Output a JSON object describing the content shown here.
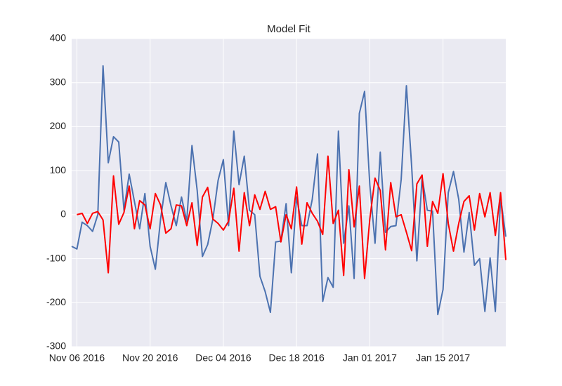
{
  "chart_data": {
    "type": "line",
    "title": "Model Fit",
    "x": [
      "2016-11-05",
      "2016-11-06",
      "2016-11-07",
      "2016-11-08",
      "2016-11-09",
      "2016-11-10",
      "2016-11-11",
      "2016-11-12",
      "2016-11-13",
      "2016-11-14",
      "2016-11-15",
      "2016-11-16",
      "2016-11-17",
      "2016-11-18",
      "2016-11-19",
      "2016-11-20",
      "2016-11-21",
      "2016-11-22",
      "2016-11-23",
      "2016-11-24",
      "2016-11-25",
      "2016-11-26",
      "2016-11-27",
      "2016-11-28",
      "2016-11-29",
      "2016-11-30",
      "2016-12-01",
      "2016-12-02",
      "2016-12-03",
      "2016-12-04",
      "2016-12-05",
      "2016-12-06",
      "2016-12-07",
      "2016-12-08",
      "2016-12-09",
      "2016-12-10",
      "2016-12-11",
      "2016-12-12",
      "2016-12-13",
      "2016-12-14",
      "2016-12-15",
      "2016-12-16",
      "2016-12-17",
      "2016-12-18",
      "2016-12-19",
      "2016-12-20",
      "2016-12-21",
      "2016-12-22",
      "2016-12-23",
      "2016-12-24",
      "2016-12-25",
      "2016-12-26",
      "2016-12-27",
      "2016-12-28",
      "2016-12-29",
      "2016-12-30",
      "2016-12-31",
      "2017-01-01",
      "2017-01-02",
      "2017-01-03",
      "2017-01-04",
      "2017-01-05",
      "2017-01-06",
      "2017-01-07",
      "2017-01-08",
      "2017-01-09",
      "2017-01-10",
      "2017-01-11",
      "2017-01-12",
      "2017-01-13",
      "2017-01-14",
      "2017-01-15",
      "2017-01-16",
      "2017-01-17",
      "2017-01-18",
      "2017-01-19",
      "2017-01-20",
      "2017-01-21",
      "2017-01-22",
      "2017-01-23",
      "2017-01-24",
      "2017-01-25",
      "2017-01-26",
      "2017-01-27"
    ],
    "series": [
      {
        "color": "#4c72b0",
        "values": [
          -72,
          -78,
          -17,
          -25,
          -38,
          0,
          338,
          118,
          177,
          165,
          10,
          92,
          30,
          -32,
          48,
          -72,
          -124,
          -10,
          73,
          20,
          -25,
          40,
          -15,
          157,
          55,
          -95,
          -68,
          -10,
          78,
          125,
          -25,
          190,
          68,
          133,
          10,
          0,
          -140,
          -175,
          -222,
          -62,
          -60,
          25,
          -132,
          40,
          -25,
          -25,
          35,
          138,
          -197,
          -143,
          -165,
          190,
          -65,
          20,
          -145,
          230,
          280,
          68,
          -65,
          142,
          -40,
          -27,
          -25,
          80,
          293,
          110,
          -105,
          85,
          10,
          8,
          -227,
          -170,
          50,
          98,
          35,
          -85,
          5,
          -115,
          -100,
          -220,
          -98,
          -220,
          40,
          -50
        ]
      },
      {
        "color": "#ff0000",
        "values": [
          null,
          0,
          3,
          -20,
          3,
          7,
          -12,
          -132,
          88,
          -22,
          5,
          65,
          -32,
          32,
          22,
          -32,
          48,
          22,
          -42,
          -32,
          22,
          20,
          -25,
          27,
          -70,
          40,
          62,
          -10,
          -20,
          -35,
          -15,
          60,
          -83,
          50,
          -25,
          45,
          12,
          53,
          12,
          18,
          -62,
          0,
          -32,
          63,
          -67,
          27,
          3,
          -15,
          -45,
          133,
          -20,
          10,
          -138,
          102,
          -28,
          65,
          -145,
          -10,
          83,
          55,
          -80,
          73,
          -5,
          0,
          -40,
          -82,
          70,
          90,
          -72,
          30,
          3,
          93,
          -20,
          -83,
          -20,
          30,
          43,
          -35,
          48,
          -5,
          50,
          -47,
          50,
          -103
        ]
      }
    ],
    "xlim": [
      "2016-11-05",
      "2017-01-27"
    ],
    "xticks": [
      {
        "value": "2016-11-06",
        "label": "Nov 06 2016"
      },
      {
        "value": "2016-11-20",
        "label": "Nov 20 2016"
      },
      {
        "value": "2016-12-04",
        "label": "Dec 04 2016"
      },
      {
        "value": "2016-12-18",
        "label": "Dec 18 2016"
      },
      {
        "value": "2017-01-01",
        "label": "Jan 01 2017"
      },
      {
        "value": "2017-01-15",
        "label": "Jan 15 2017"
      }
    ],
    "ylim": [
      -300,
      400
    ],
    "yticks": [
      -300,
      -200,
      -100,
      0,
      100,
      200,
      300,
      400
    ],
    "grid": true
  }
}
